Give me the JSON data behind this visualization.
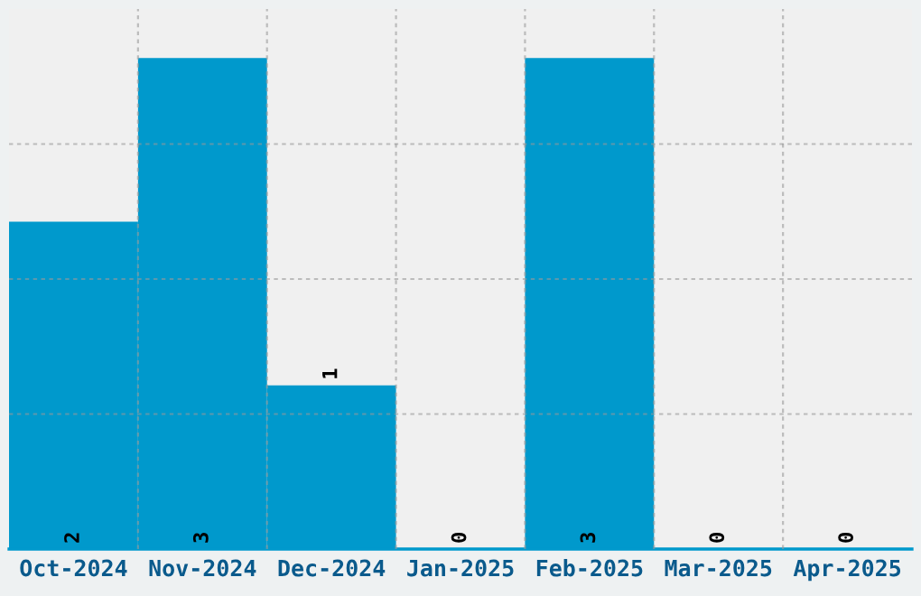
{
  "chart_data": {
    "type": "bar",
    "categories": [
      "Oct-2024",
      "Nov-2024",
      "Dec-2024",
      "Jan-2025",
      "Feb-2025",
      "Mar-2025",
      "Apr-2025"
    ],
    "values": [
      2,
      3,
      1,
      0,
      3,
      0,
      0
    ],
    "color": "#0099cc",
    "ylim": [
      0,
      3.3
    ],
    "yticks": [
      {
        "value": 0.825,
        "label": null
      },
      {
        "value": 1.65,
        "label": null
      },
      {
        "value": 2.475,
        "label": null
      }
    ],
    "tick_labels": "x",
    "grid": true,
    "data_labels": true
  }
}
